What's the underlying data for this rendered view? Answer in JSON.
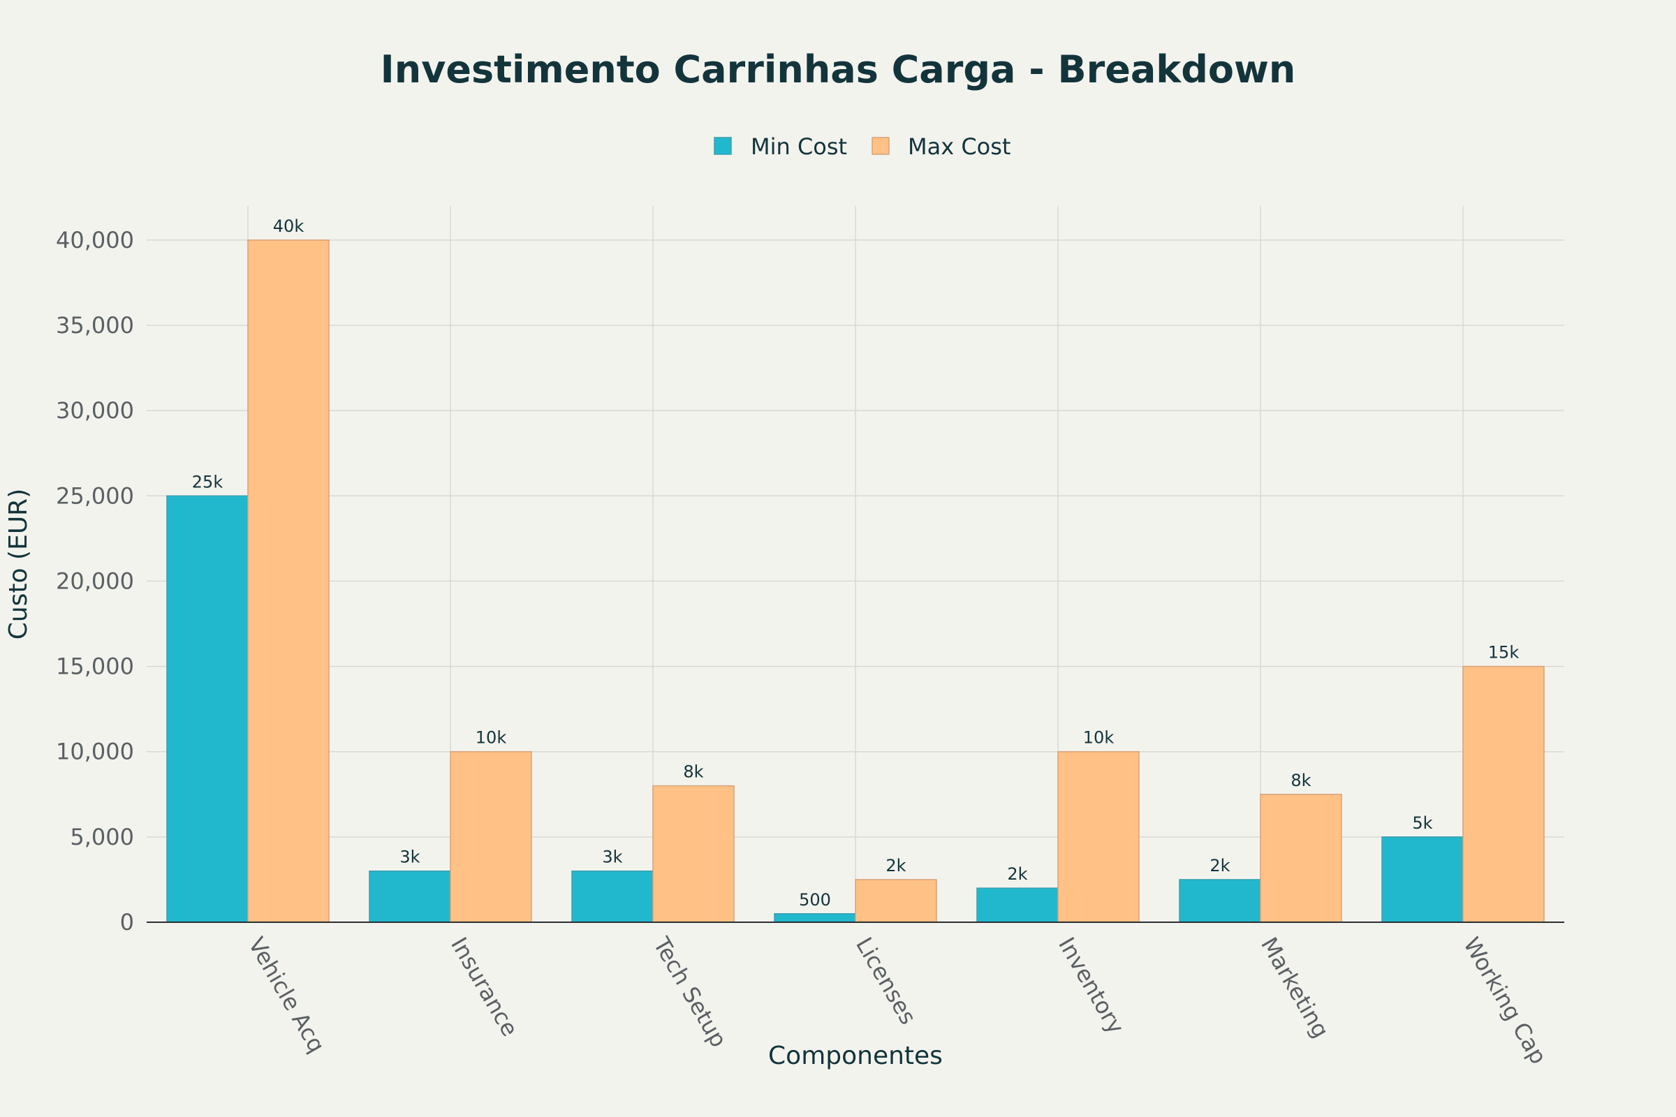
{
  "chart_data": {
    "type": "bar",
    "title": "Investimento Carrinhas Carga - Breakdown",
    "xlabel": "Componentes",
    "ylabel": "Custo (EUR)",
    "categories": [
      "Vehicle Acq",
      "Insurance",
      "Tech Setup",
      "Licenses",
      "Inventory",
      "Marketing",
      "Working Cap"
    ],
    "series": [
      {
        "name": "Min Cost",
        "color": "#21b8cd",
        "stroke": "#3a9fae",
        "values": [
          25000,
          3000,
          3000,
          500,
          2000,
          2500,
          5000
        ],
        "labels": [
          "25k",
          "3k",
          "3k",
          "500",
          "2k",
          "2k",
          "5k"
        ]
      },
      {
        "name": "Max Cost",
        "color": "#ffc185",
        "stroke": "#d9a27a",
        "values": [
          40000,
          10000,
          8000,
          2500,
          10000,
          7500,
          15000
        ],
        "labels": [
          "40k",
          "10k",
          "8k",
          "2k",
          "10k",
          "8k",
          "15k"
        ]
      }
    ],
    "ylim": [
      0,
      42000
    ],
    "yticks": [
      0,
      5000,
      10000,
      15000,
      20000,
      25000,
      30000,
      35000,
      40000
    ],
    "ytick_labels": [
      "0",
      "5,000",
      "10,000",
      "15,000",
      "20,000",
      "25,000",
      "30,000",
      "35,000",
      "40,000"
    ],
    "grid": true,
    "legend_position": "top-center"
  }
}
